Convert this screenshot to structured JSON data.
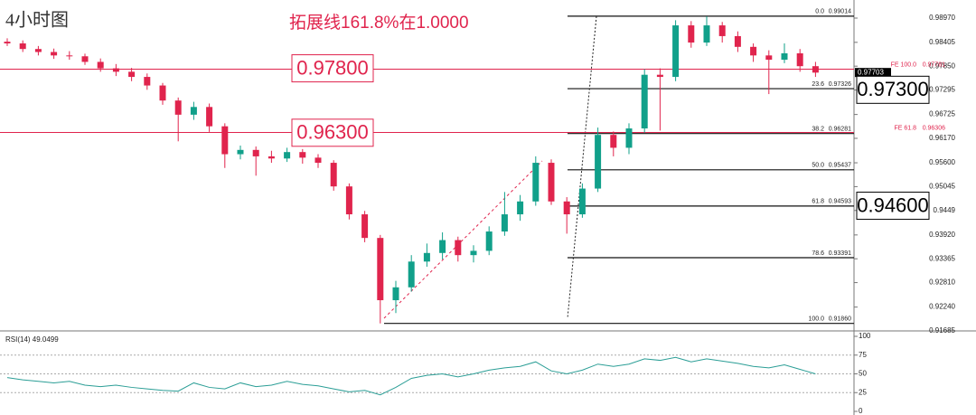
{
  "chart_data": {
    "type": "candlestick",
    "title": "4小时图",
    "subtitle": "拓展线161.8%在1.0000",
    "up_color": "#11a08a",
    "down_color": "#e0244d",
    "ohlc": [
      [
        0.9842,
        0.985,
        0.9832,
        0.9838
      ],
      [
        0.9838,
        0.9845,
        0.9818,
        0.9825
      ],
      [
        0.9825,
        0.9832,
        0.981,
        0.9818
      ],
      [
        0.9818,
        0.9826,
        0.9802,
        0.981
      ],
      [
        0.981,
        0.982,
        0.98,
        0.9808
      ],
      [
        0.9808,
        0.9814,
        0.9788,
        0.9795
      ],
      [
        0.9795,
        0.9803,
        0.9772,
        0.978
      ],
      [
        0.978,
        0.979,
        0.9762,
        0.9772
      ],
      [
        0.9772,
        0.9781,
        0.975,
        0.976
      ],
      [
        0.976,
        0.9768,
        0.973,
        0.974
      ],
      [
        0.974,
        0.9746,
        0.9695,
        0.9705
      ],
      [
        0.9705,
        0.9712,
        0.961,
        0.9672
      ],
      [
        0.9672,
        0.9702,
        0.966,
        0.969
      ],
      [
        0.969,
        0.9698,
        0.9632,
        0.9645
      ],
      [
        0.9645,
        0.9652,
        0.9548,
        0.958
      ],
      [
        0.958,
        0.96,
        0.9568,
        0.959
      ],
      [
        0.959,
        0.9598,
        0.953,
        0.9575
      ],
      [
        0.9575,
        0.9588,
        0.956,
        0.957
      ],
      [
        0.957,
        0.9595,
        0.9562,
        0.9585
      ],
      [
        0.9585,
        0.9592,
        0.9558,
        0.9572
      ],
      [
        0.9572,
        0.958,
        0.9548,
        0.956
      ],
      [
        0.956,
        0.9566,
        0.9495,
        0.9505
      ],
      [
        0.9505,
        0.9512,
        0.9428,
        0.944
      ],
      [
        0.944,
        0.9448,
        0.9375,
        0.9385
      ],
      [
        0.9385,
        0.9392,
        0.9186,
        0.924
      ],
      [
        0.924,
        0.9285,
        0.921,
        0.927
      ],
      [
        0.927,
        0.9345,
        0.926,
        0.933
      ],
      [
        0.933,
        0.9372,
        0.9318,
        0.935
      ],
      [
        0.935,
        0.9398,
        0.9335,
        0.938
      ],
      [
        0.938,
        0.9388,
        0.933,
        0.9345
      ],
      [
        0.9345,
        0.9368,
        0.9328,
        0.9355
      ],
      [
        0.9355,
        0.9412,
        0.9345,
        0.94
      ],
      [
        0.94,
        0.9492,
        0.939,
        0.944
      ],
      [
        0.944,
        0.9485,
        0.9425,
        0.947
      ],
      [
        0.947,
        0.9575,
        0.946,
        0.956
      ],
      [
        0.956,
        0.9568,
        0.9462,
        0.947
      ],
      [
        0.947,
        0.948,
        0.9395,
        0.944
      ],
      [
        0.944,
        0.9512,
        0.9432,
        0.95
      ],
      [
        0.95,
        0.9642,
        0.9492,
        0.9625
      ],
      [
        0.9625,
        0.9633,
        0.9575,
        0.9595
      ],
      [
        0.9595,
        0.9652,
        0.958,
        0.964
      ],
      [
        0.964,
        0.9778,
        0.963,
        0.9765
      ],
      [
        0.9765,
        0.978,
        0.9635,
        0.976
      ],
      [
        0.976,
        0.9892,
        0.975,
        0.988
      ],
      [
        0.988,
        0.989,
        0.9828,
        0.984
      ],
      [
        0.984,
        0.9901,
        0.9832,
        0.988
      ],
      [
        0.988,
        0.9888,
        0.984,
        0.9855
      ],
      [
        0.9855,
        0.9866,
        0.9818,
        0.983
      ],
      [
        0.983,
        0.9838,
        0.9795,
        0.981
      ],
      [
        0.981,
        0.9822,
        0.972,
        0.98
      ],
      [
        0.98,
        0.9838,
        0.9792,
        0.9815
      ],
      [
        0.9815,
        0.9825,
        0.9772,
        0.9785
      ],
      [
        0.9785,
        0.9795,
        0.976,
        0.977
      ]
    ],
    "ylim": [
      0.91685,
      0.99391
    ],
    "yticks": [
      {
        "value": 0.9897,
        "label": "0.98970"
      },
      0.98405,
      {
        "value": 0.9785,
        "label": "0.97850"
      },
      0.97295,
      0.96725,
      {
        "value": 0.9617,
        "label": "0.96170"
      },
      {
        "value": 0.956,
        "label": "0.95600"
      },
      0.95045,
      0.9449,
      {
        "value": 0.9392,
        "label": "0.93920"
      },
      0.93365,
      {
        "value": 0.9281,
        "label": "0.92810"
      },
      {
        "value": 0.9224,
        "label": "0.92240"
      },
      0.91685
    ],
    "current_price": 0.97703,
    "fib_levels": [
      {
        "ratio": "0.0",
        "price": 0.99014
      },
      {
        "ratio": "23.6",
        "price": 0.97326
      },
      {
        "ratio": "38.2",
        "price": 0.96281
      },
      {
        "ratio": "50.0",
        "price": 0.95437
      },
      {
        "ratio": "61.8",
        "price": 0.94593
      },
      {
        "ratio": "78.6",
        "price": 0.93391
      },
      {
        "ratio": "100.0",
        "price": {
          "value": 0.9186,
          "label": "0.91860"
        }
      }
    ],
    "fe_levels": [
      {
        "label": "FE 100.0",
        "price": 0.97781
      },
      {
        "label": "FE 61.8",
        "price": 0.96306
      }
    ],
    "annotations": [
      {
        "text": "0.97800",
        "price": 0.978,
        "color": "#e0244d",
        "side": "left"
      },
      {
        "text": "0.96300",
        "price": 0.963,
        "color": "#e0244d",
        "side": "left"
      },
      {
        "text": "0.97300",
        "price": 0.973,
        "color": "#000000",
        "side": "right"
      },
      {
        "text": "0.94600",
        "price": 0.946,
        "color": "#000000",
        "side": "right"
      }
    ],
    "rsi": {
      "label": "RSI(14) 49.0499",
      "color": "#2b9e96",
      "ylim": [
        0,
        100
      ],
      "yticks": [
        100,
        75,
        50,
        25,
        0
      ],
      "values": [
        45,
        42,
        40,
        38,
        40,
        35,
        33,
        35,
        32,
        30,
        28,
        27,
        38,
        32,
        30,
        38,
        33,
        35,
        40,
        36,
        34,
        30,
        26,
        28,
        22,
        32,
        44,
        48,
        50,
        46,
        50,
        55,
        58,
        60,
        66,
        54,
        50,
        55,
        63,
        60,
        63,
        70,
        68,
        72,
        66,
        70,
        67,
        64,
        60,
        58,
        62,
        56,
        50
      ]
    }
  }
}
